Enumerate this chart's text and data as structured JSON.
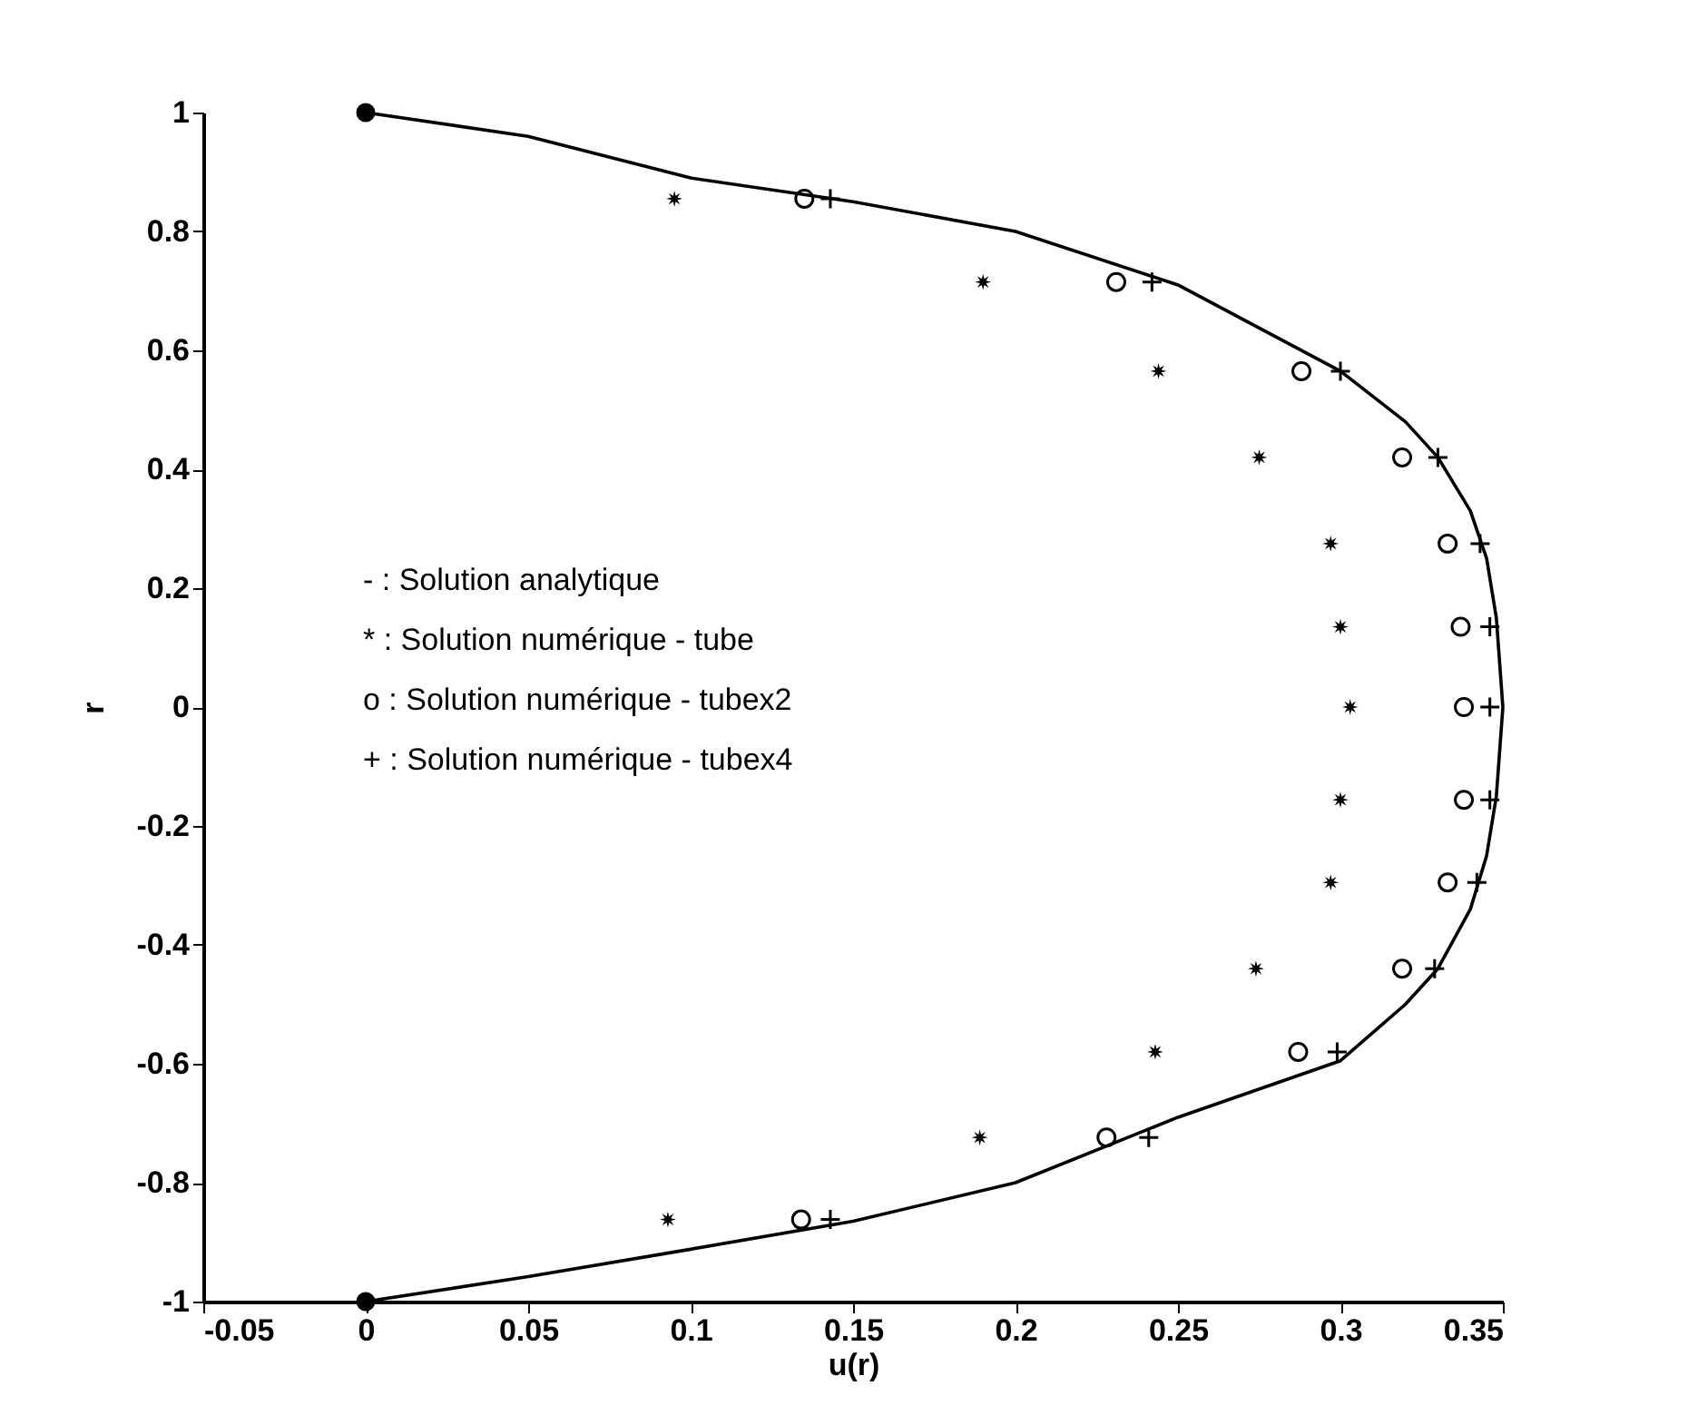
{
  "chart_data": {
    "type": "scatter",
    "xlabel": "u(r)",
    "ylabel": "r",
    "xlim": [
      -0.05,
      0.35
    ],
    "xticks": [
      -0.05,
      0,
      0.05,
      0.1,
      0.15,
      0.2,
      0.25,
      0.3,
      0.35
    ],
    "ylim": [
      -1,
      1
    ],
    "yticks": [
      -1,
      -0.8,
      -0.6,
      -0.4,
      -0.2,
      0,
      0.2,
      0.4,
      0.6,
      0.8,
      1
    ],
    "grid": false,
    "annotations": [
      "- : Solution analytique",
      "* : Solution numérique - tube",
      "o : Solution numérique - tubex2",
      "+ : Solution numérique - tubex4"
    ],
    "series": [
      {
        "type": "line",
        "marker": "none",
        "line_style": "solid",
        "color": "#000000",
        "x": [
          0,
          0.05,
          0.1,
          0.15,
          0.2,
          0.25,
          0.3,
          0.32,
          0.33,
          0.34,
          0.345,
          0.348,
          0.35,
          0.348,
          0.345,
          0.34,
          0.33,
          0.32,
          0.3,
          0.25,
          0.2,
          0.15,
          0.1,
          0.05,
          0
        ],
        "values": [
          1,
          0.96,
          0.89,
          0.85,
          0.8,
          0.71,
          0.565,
          0.48,
          0.42,
          0.33,
          0.25,
          0.15,
          0,
          -0.15,
          -0.25,
          -0.34,
          -0.44,
          -0.5,
          -0.595,
          -0.69,
          -0.8,
          -0.865,
          -0.912,
          -0.958,
          -1
        ]
      },
      {
        "type": "scatter",
        "marker": "circle",
        "color": "#000000",
        "x": [
          0,
          0
        ],
        "values": [
          1,
          -1
        ]
      },
      {
        "marker": "star",
        "color": "#000000",
        "x": [
          0.095,
          0.19,
          0.244,
          0.275,
          0.297,
          0.3,
          0.303,
          0.3,
          0.297,
          0.274,
          0.243,
          0.189,
          0.093
        ],
        "values": [
          0.855,
          0.715,
          0.565,
          0.42,
          0.275,
          0.135,
          0,
          -0.156,
          -0.295,
          -0.44,
          -0.58,
          -0.724,
          -0.862
        ]
      },
      {
        "type": "scatter",
        "marker": "circle",
        "color": "#000000",
        "x": [
          0.135,
          0.231,
          0.288,
          0.319,
          0.333,
          0.337,
          0.338,
          0.338,
          0.333,
          0.319,
          0.287,
          0.228,
          0.134
        ],
        "values": [
          0.855,
          0.715,
          0.565,
          0.42,
          0.275,
          0.135,
          0,
          -0.156,
          -0.295,
          -0.44,
          -0.58,
          -0.724,
          -0.862
        ]
      },
      {
        "type": "scatter",
        "marker": "cross",
        "color": "#000000",
        "x": [
          0.143,
          0.242,
          0.3,
          0.33,
          0.343,
          0.346,
          0.346,
          0.346,
          0.342,
          0.329,
          0.299,
          0.241,
          0.143
        ],
        "values": [
          0.855,
          0.715,
          0.565,
          0.42,
          0.275,
          0.135,
          0,
          -0.156,
          -0.295,
          -0.44,
          -0.58,
          -0.724,
          -0.862
        ]
      }
    ]
  }
}
